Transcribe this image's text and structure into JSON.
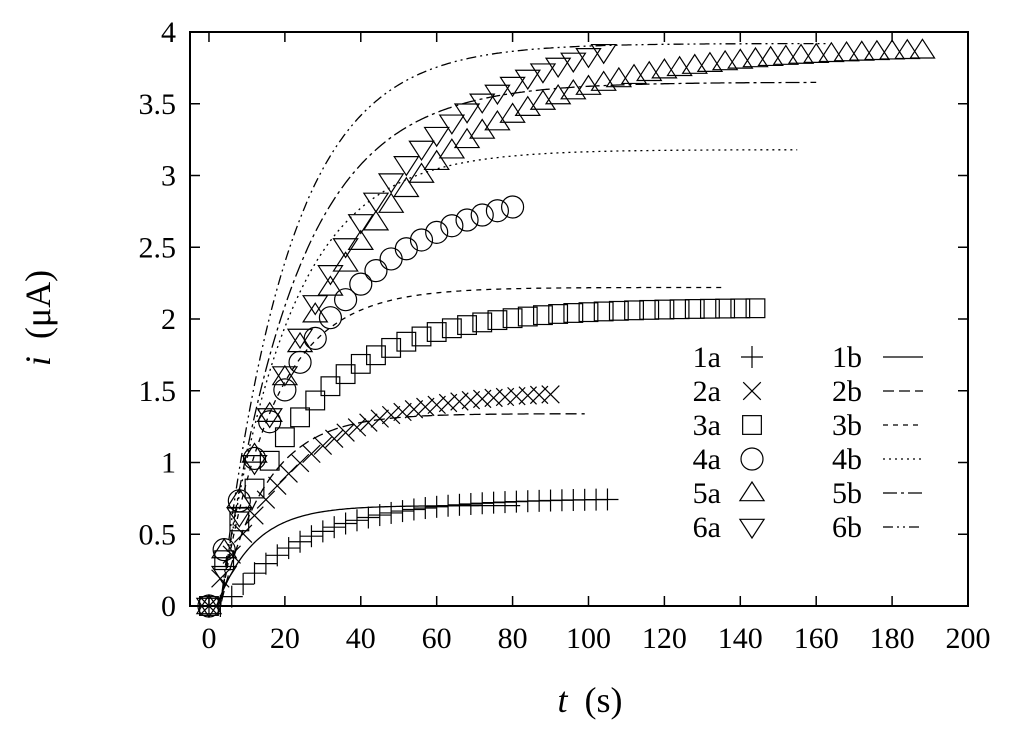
{
  "chart_data": {
    "type": "scatter",
    "title": "",
    "xlabel": {
      "symbol": "t",
      "unit": "(s)"
    },
    "ylabel": {
      "symbol": "i",
      "unit": "(μA)"
    },
    "xlim": [
      -5,
      200
    ],
    "ylim": [
      0,
      4
    ],
    "xticks": [
      "0",
      "20",
      "40",
      "60",
      "80",
      "100",
      "120",
      "140",
      "160",
      "180",
      "200"
    ],
    "yticks": [
      "0",
      "0.5",
      "1",
      "1.5",
      "2",
      "2.5",
      "3",
      "3.5",
      "4"
    ],
    "grid": false,
    "legend_position": "bottom-right",
    "series": [
      {
        "name": "1a",
        "kind": "points",
        "marker": "plus",
        "imax": 0.75,
        "tau": 22,
        "delay": 4,
        "tmax": 107,
        "step": 3
      },
      {
        "name": "2a",
        "kind": "points",
        "marker": "cross",
        "imax": 1.5,
        "tau": 22,
        "delay": 0,
        "tmax": 92,
        "step": 3
      },
      {
        "name": "3a",
        "kind": "points",
        "marker": "square",
        "imax": 2.08,
        "tau": 24,
        "delay": 0,
        "tmax": 146,
        "step": 4
      },
      {
        "name": "4a",
        "kind": "points",
        "marker": "circle",
        "imax": 2.95,
        "tau": 28,
        "delay": 0,
        "tmax": 81,
        "step": 4
      },
      {
        "name": "5a",
        "kind": "points",
        "marker": "triangle-up",
        "imax": 3.9,
        "tau": 38,
        "delay": 0,
        "tmax": 190,
        "step": 4
      },
      {
        "name": "6a",
        "kind": "points",
        "marker": "triangle-down",
        "imax": 4.1,
        "tau": 36,
        "delay": 2,
        "tmax": 104,
        "step": 4
      },
      {
        "name": "1b",
        "kind": "line",
        "dash": "",
        "imax": 0.7,
        "tau": 10,
        "delay": 2,
        "tmax": 82
      },
      {
        "name": "2b",
        "kind": "line",
        "dash": "11,5",
        "imax": 1.34,
        "tau": 12,
        "delay": 3,
        "tmax": 99
      },
      {
        "name": "3b",
        "kind": "line",
        "dash": "5,5",
        "imax": 2.22,
        "tau": 14,
        "delay": 3,
        "tmax": 135
      },
      {
        "name": "4b",
        "kind": "line",
        "dash": "2,4",
        "imax": 3.18,
        "tau": 18,
        "delay": 3,
        "tmax": 155
      },
      {
        "name": "5b",
        "kind": "line",
        "dash": "14,4,3,4",
        "imax": 3.65,
        "tau": 20,
        "delay": 3,
        "tmax": 160
      },
      {
        "name": "6b",
        "kind": "line",
        "dash": "10,4,2,4,2,4",
        "imax": 3.92,
        "tau": 18,
        "delay": 3,
        "tmax": 163
      }
    ]
  }
}
